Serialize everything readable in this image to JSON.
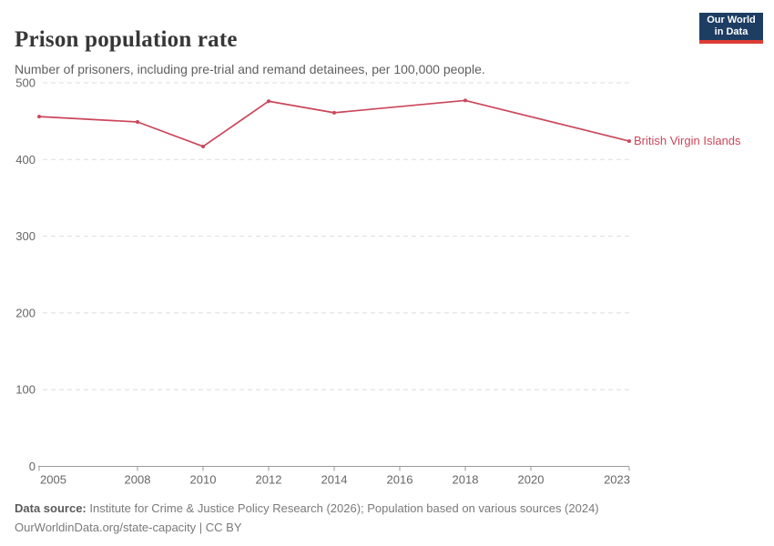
{
  "header": {
    "title": "Prison population rate",
    "subtitle": "Number of prisoners, including pre-trial and remand detainees, per 100,000 people.",
    "logo_line1": "Our World",
    "logo_line2": "in Data"
  },
  "footer": {
    "source_label": "Data source:",
    "source_text": " Institute for Crime & Justice Policy Research (2026); Population based on various sources (2024)",
    "url": "OurWorldinData.org/state-capacity",
    "separator": " | ",
    "license": "CC BY"
  },
  "colors": {
    "line": "#cb465a",
    "grid": "#dedede",
    "axis": "#9a9a9a",
    "tick_label": "#666666",
    "title": "#373737",
    "subtitle": "#5f5f5f",
    "logo_bg": "#1d3d63",
    "logo_red": "#dc3c34"
  },
  "chart_data": {
    "type": "line",
    "title": "Prison population rate",
    "subtitle": "Number of prisoners, including pre-trial and remand detainees, per 100,000 people.",
    "xlabel": "",
    "ylabel": "",
    "x": [
      2005,
      2008,
      2010,
      2012,
      2014,
      2018,
      2023
    ],
    "series": [
      {
        "name": "British Virgin Islands",
        "color": "#cb465a",
        "values": [
          456,
          449,
          417,
          476,
          461,
          477,
          424
        ]
      }
    ],
    "xlim": [
      2005,
      2023
    ],
    "ylim": [
      0,
      500
    ],
    "yticks": [
      0,
      100,
      200,
      300,
      400,
      500
    ],
    "xticks": [
      2005,
      2008,
      2010,
      2012,
      2014,
      2016,
      2018,
      2020,
      2023
    ],
    "grid": "horizontal-dashed",
    "legend_position": "end-of-line-label",
    "markers": true
  }
}
